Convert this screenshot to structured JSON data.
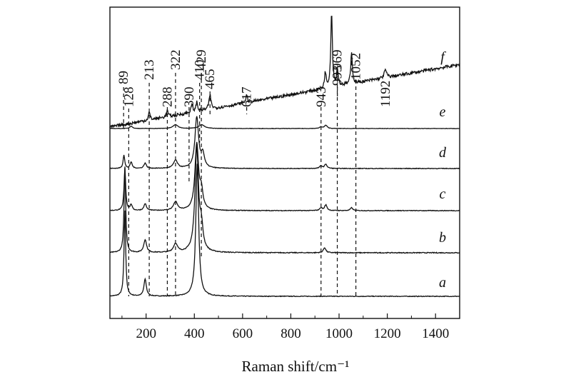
{
  "chart_data": {
    "type": "line",
    "title": "",
    "xlabel": "Raman shift/cm⁻¹",
    "ylabel": "",
    "xlim": [
      50,
      1500
    ],
    "xticks": [
      200,
      400,
      600,
      800,
      1000,
      1200,
      1400
    ],
    "xtick_labels": [
      "200",
      "400",
      "600",
      "800",
      "1000",
      "1200",
      "1400"
    ],
    "grid": false,
    "legend": "none",
    "reference_peaks": [
      {
        "label": "89",
        "x": 89
      },
      {
        "label": "128",
        "x": 128
      },
      {
        "label": "213",
        "x": 213
      },
      {
        "label": "288",
        "x": 288
      },
      {
        "label": "322",
        "x": 322
      },
      {
        "label": "390",
        "x": 390
      },
      {
        "label": "410",
        "x": 410
      },
      {
        "label": "429",
        "x": 429
      },
      {
        "label": "465",
        "x": 465
      },
      {
        "label": "617",
        "x": 617
      },
      {
        "label": "943",
        "x": 943
      },
      {
        "label": "969",
        "x": 969
      },
      {
        "label": "993",
        "x": 993
      },
      {
        "label": "1052",
        "x": 1052
      },
      {
        "label": "1192",
        "x": 1192
      }
    ],
    "series": [
      {
        "name": "a",
        "baseline": 0.0,
        "slope": 0.0,
        "noise": 0.004,
        "peaks": [
          {
            "x": 112,
            "h": 1.0,
            "w": 4
          },
          {
            "x": 196,
            "h": 0.2,
            "w": 6
          },
          {
            "x": 412,
            "h": 1.55,
            "w": 7
          }
        ]
      },
      {
        "name": "b",
        "baseline": 0.0,
        "slope": 0.0,
        "noise": 0.005,
        "peaks": [
          {
            "x": 112,
            "h": 1.0,
            "w": 4
          },
          {
            "x": 196,
            "h": 0.15,
            "w": 7
          },
          {
            "x": 322,
            "h": 0.1,
            "w": 10
          },
          {
            "x": 410,
            "h": 1.2,
            "w": 9
          },
          {
            "x": 429,
            "h": 0.25,
            "w": 8
          },
          {
            "x": 940,
            "h": 0.06,
            "w": 6
          }
        ]
      },
      {
        "name": "c",
        "baseline": 0.0,
        "slope": 0.0,
        "noise": 0.006,
        "peaks": [
          {
            "x": 112,
            "h": 0.75,
            "w": 4
          },
          {
            "x": 138,
            "h": 0.1,
            "w": 5
          },
          {
            "x": 196,
            "h": 0.12,
            "w": 6
          },
          {
            "x": 322,
            "h": 0.15,
            "w": 10
          },
          {
            "x": 410,
            "h": 1.15,
            "w": 9
          },
          {
            "x": 429,
            "h": 0.3,
            "w": 8
          },
          {
            "x": 925,
            "h": 0.05,
            "w": 6
          },
          {
            "x": 945,
            "h": 0.1,
            "w": 6
          },
          {
            "x": 1052,
            "h": 0.05,
            "w": 6
          }
        ]
      },
      {
        "name": "d",
        "baseline": 0.0,
        "slope": 0.0,
        "noise": 0.006,
        "peaks": [
          {
            "x": 108,
            "h": 0.25,
            "w": 4
          },
          {
            "x": 138,
            "h": 0.12,
            "w": 5
          },
          {
            "x": 196,
            "h": 0.1,
            "w": 6
          },
          {
            "x": 322,
            "h": 0.15,
            "w": 10
          },
          {
            "x": 410,
            "h": 0.95,
            "w": 9
          },
          {
            "x": 435,
            "h": 0.25,
            "w": 8
          },
          {
            "x": 925,
            "h": 0.05,
            "w": 6
          },
          {
            "x": 945,
            "h": 0.08,
            "w": 6
          }
        ]
      },
      {
        "name": "e",
        "baseline": 0.0,
        "slope": 0.0,
        "noise": 0.006,
        "peaks": [
          {
            "x": 138,
            "h": 0.08,
            "w": 6
          },
          {
            "x": 322,
            "h": 0.12,
            "w": 12
          },
          {
            "x": 430,
            "h": 0.12,
            "w": 14
          },
          {
            "x": 925,
            "h": 0.05,
            "w": 6
          },
          {
            "x": 945,
            "h": 0.1,
            "w": 7
          }
        ]
      },
      {
        "name": "f",
        "baseline": 0.0,
        "slope": 0.00055,
        "noise": 0.02,
        "peaks": [
          {
            "x": 213,
            "h": 0.1,
            "w": 4
          },
          {
            "x": 288,
            "h": 0.08,
            "w": 4
          },
          {
            "x": 390,
            "h": 0.1,
            "w": 4
          },
          {
            "x": 410,
            "h": 0.12,
            "w": 4
          },
          {
            "x": 465,
            "h": 0.18,
            "w": 5
          },
          {
            "x": 617,
            "h": 0.1,
            "w": 4
          },
          {
            "x": 943,
            "h": 0.2,
            "w": 4
          },
          {
            "x": 969,
            "h": 0.95,
            "w": 4
          },
          {
            "x": 993,
            "h": 0.22,
            "w": 4
          },
          {
            "x": 1052,
            "h": 0.4,
            "w": 4
          },
          {
            "x": 1192,
            "h": 0.1,
            "w": 6
          }
        ]
      }
    ]
  }
}
